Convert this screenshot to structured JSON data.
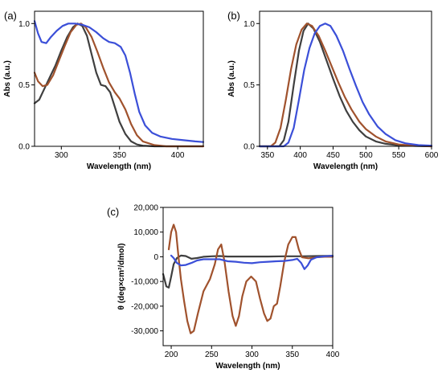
{
  "chart_data": [
    {
      "type": "line",
      "panel_label": "(a)",
      "xlabel": "Wavelength (nm)",
      "ylabel": "Abs (a.u.)",
      "xlim": [
        277,
        422
      ],
      "ylim": [
        0,
        1.1
      ],
      "xticks": [
        300,
        350,
        400
      ],
      "yticks": [
        0.0,
        0.5,
        1.0
      ],
      "ytick_labels": [
        "0.0",
        "0.5",
        "1.0"
      ],
      "grid": false,
      "series": [
        {
          "color": "#3f3f3f",
          "points": [
            [
              277,
              0.35
            ],
            [
              281,
              0.38
            ],
            [
              285,
              0.46
            ],
            [
              290,
              0.56
            ],
            [
              295,
              0.66
            ],
            [
              300,
              0.78
            ],
            [
              305,
              0.89
            ],
            [
              310,
              0.97
            ],
            [
              314,
              1.0
            ],
            [
              318,
              0.98
            ],
            [
              322,
              0.9
            ],
            [
              326,
              0.75
            ],
            [
              330,
              0.6
            ],
            [
              334,
              0.5
            ],
            [
              338,
              0.49
            ],
            [
              342,
              0.44
            ],
            [
              346,
              0.32
            ],
            [
              350,
              0.2
            ],
            [
              355,
              0.1
            ],
            [
              360,
              0.04
            ],
            [
              365,
              0.015
            ],
            [
              370,
              0.005
            ],
            [
              380,
              0.0
            ],
            [
              422,
              0.0
            ]
          ]
        },
        {
          "color": "#a0522d",
          "points": [
            [
              277,
              0.6
            ],
            [
              280,
              0.53
            ],
            [
              284,
              0.49
            ],
            [
              288,
              0.5
            ],
            [
              293,
              0.58
            ],
            [
              298,
              0.7
            ],
            [
              303,
              0.82
            ],
            [
              308,
              0.93
            ],
            [
              313,
              0.99
            ],
            [
              317,
              1.0
            ],
            [
              321,
              0.97
            ],
            [
              326,
              0.89
            ],
            [
              331,
              0.77
            ],
            [
              336,
              0.64
            ],
            [
              341,
              0.52
            ],
            [
              346,
              0.44
            ],
            [
              350,
              0.39
            ],
            [
              355,
              0.3
            ],
            [
              360,
              0.18
            ],
            [
              365,
              0.09
            ],
            [
              370,
              0.04
            ],
            [
              380,
              0.01
            ],
            [
              390,
              0.0
            ],
            [
              422,
              0.0
            ]
          ]
        },
        {
          "color": "#3b4fd8",
          "points": [
            [
              277,
              1.02
            ],
            [
              280,
              0.92
            ],
            [
              283,
              0.85
            ],
            [
              287,
              0.84
            ],
            [
              291,
              0.89
            ],
            [
              296,
              0.94
            ],
            [
              301,
              0.98
            ],
            [
              306,
              1.0
            ],
            [
              312,
              1.0
            ],
            [
              318,
              0.99
            ],
            [
              324,
              0.97
            ],
            [
              330,
              0.93
            ],
            [
              336,
              0.88
            ],
            [
              341,
              0.85
            ],
            [
              346,
              0.84
            ],
            [
              351,
              0.81
            ],
            [
              355,
              0.74
            ],
            [
              359,
              0.6
            ],
            [
              363,
              0.43
            ],
            [
              367,
              0.28
            ],
            [
              372,
              0.17
            ],
            [
              378,
              0.11
            ],
            [
              385,
              0.08
            ],
            [
              395,
              0.06
            ],
            [
              405,
              0.05
            ],
            [
              415,
              0.04
            ],
            [
              422,
              0.035
            ]
          ]
        }
      ]
    },
    {
      "type": "line",
      "panel_label": "(b)",
      "xlabel": "Wavelength (nm)",
      "ylabel": "Abs (a.u.)",
      "xlim": [
        338,
        600
      ],
      "ylim": [
        0,
        1.1
      ],
      "xticks": [
        350,
        400,
        450,
        500,
        550,
        600
      ],
      "yticks": [
        0.0,
        0.5,
        1.0
      ],
      "ytick_labels": [
        "0.0",
        "0.5",
        "1.0"
      ],
      "grid": false,
      "series": [
        {
          "color": "#3f3f3f",
          "points": [
            [
              338,
              0.0
            ],
            [
              368,
              0.0
            ],
            [
              375,
              0.05
            ],
            [
              382,
              0.2
            ],
            [
              390,
              0.5
            ],
            [
              398,
              0.78
            ],
            [
              405,
              0.94
            ],
            [
              412,
              1.0
            ],
            [
              420,
              0.96
            ],
            [
              430,
              0.85
            ],
            [
              440,
              0.7
            ],
            [
              450,
              0.55
            ],
            [
              460,
              0.41
            ],
            [
              470,
              0.29
            ],
            [
              480,
              0.2
            ],
            [
              490,
              0.13
            ],
            [
              500,
              0.08
            ],
            [
              515,
              0.04
            ],
            [
              530,
              0.02
            ],
            [
              550,
              0.008
            ],
            [
              575,
              0.003
            ],
            [
              600,
              0.0
            ]
          ]
        },
        {
          "color": "#a0522d",
          "points": [
            [
              338,
              0.0
            ],
            [
              355,
              0.0
            ],
            [
              362,
              0.03
            ],
            [
              370,
              0.15
            ],
            [
              378,
              0.38
            ],
            [
              386,
              0.63
            ],
            [
              394,
              0.83
            ],
            [
              402,
              0.95
            ],
            [
              410,
              1.0
            ],
            [
              418,
              0.98
            ],
            [
              428,
              0.9
            ],
            [
              438,
              0.78
            ],
            [
              448,
              0.65
            ],
            [
              458,
              0.52
            ],
            [
              468,
              0.4
            ],
            [
              478,
              0.3
            ],
            [
              490,
              0.2
            ],
            [
              500,
              0.14
            ],
            [
              515,
              0.08
            ],
            [
              530,
              0.04
            ],
            [
              550,
              0.015
            ],
            [
              575,
              0.005
            ],
            [
              600,
              0.0
            ]
          ]
        },
        {
          "color": "#3b4fd8",
          "points": [
            [
              338,
              0.0
            ],
            [
              375,
              0.0
            ],
            [
              382,
              0.03
            ],
            [
              390,
              0.15
            ],
            [
              398,
              0.38
            ],
            [
              406,
              0.62
            ],
            [
              414,
              0.8
            ],
            [
              422,
              0.92
            ],
            [
              430,
              0.98
            ],
            [
              438,
              1.0
            ],
            [
              446,
              0.98
            ],
            [
              455,
              0.9
            ],
            [
              465,
              0.78
            ],
            [
              475,
              0.63
            ],
            [
              485,
              0.49
            ],
            [
              495,
              0.36
            ],
            [
              505,
              0.26
            ],
            [
              518,
              0.16
            ],
            [
              530,
              0.1
            ],
            [
              545,
              0.05
            ],
            [
              560,
              0.025
            ],
            [
              580,
              0.01
            ],
            [
              600,
              0.005
            ]
          ]
        }
      ]
    },
    {
      "type": "line",
      "panel_label": "(c)",
      "xlabel": "Wavelength (nm)",
      "ylabel": "θ (deg×cm²/dmol)",
      "xlim": [
        190,
        400
      ],
      "ylim": [
        -36000,
        20000
      ],
      "xticks": [
        200,
        250,
        300,
        350,
        400
      ],
      "yticks": [
        20000,
        10000,
        0,
        -10000,
        -20000,
        -30000
      ],
      "ytick_labels": [
        "20,000",
        "10,000",
        "0",
        "-10,000",
        "-20,000",
        "-30,000"
      ],
      "grid": false,
      "series": [
        {
          "color": "#3f3f3f",
          "points": [
            [
              190,
              -7000
            ],
            [
              194,
              -12000
            ],
            [
              197,
              -12500
            ],
            [
              200,
              -8000
            ],
            [
              203,
              -3000
            ],
            [
              207,
              -500
            ],
            [
              212,
              500
            ],
            [
              218,
              300
            ],
            [
              225,
              -800
            ],
            [
              232,
              -500
            ],
            [
              240,
              0
            ],
            [
              250,
              200
            ],
            [
              260,
              300
            ],
            [
              270,
              100
            ],
            [
              280,
              100
            ],
            [
              300,
              100
            ],
            [
              320,
              100
            ],
            [
              340,
              200
            ],
            [
              360,
              200
            ],
            [
              380,
              300
            ],
            [
              400,
              400
            ]
          ]
        },
        {
          "color": "#a0522d",
          "points": [
            [
              197,
              3000
            ],
            [
              200,
              10000
            ],
            [
              203,
              13000
            ],
            [
              206,
              10000
            ],
            [
              209,
              0
            ],
            [
              212,
              -9000
            ],
            [
              216,
              -18000
            ],
            [
              220,
              -26000
            ],
            [
              224,
              -31000
            ],
            [
              228,
              -30000
            ],
            [
              233,
              -23000
            ],
            [
              240,
              -14000
            ],
            [
              248,
              -9000
            ],
            [
              254,
              -3000
            ],
            [
              258,
              3000
            ],
            [
              262,
              5000
            ],
            [
              266,
              -2000
            ],
            [
              271,
              -14000
            ],
            [
              276,
              -24000
            ],
            [
              280,
              -28000
            ],
            [
              284,
              -24000
            ],
            [
              288,
              -16000
            ],
            [
              293,
              -10000
            ],
            [
              299,
              -8000
            ],
            [
              305,
              -10000
            ],
            [
              310,
              -17000
            ],
            [
              315,
              -23000
            ],
            [
              319,
              -26000
            ],
            [
              323,
              -25000
            ],
            [
              327,
              -20000
            ],
            [
              331,
              -19000
            ],
            [
              335,
              -12000
            ],
            [
              340,
              -2000
            ],
            [
              345,
              5000
            ],
            [
              350,
              8000
            ],
            [
              354,
              8000
            ],
            [
              358,
              3000
            ],
            [
              362,
              -200
            ],
            [
              370,
              -600
            ],
            [
              380,
              -200
            ],
            [
              390,
              0
            ],
            [
              400,
              0
            ]
          ]
        },
        {
          "color": "#3b4fd8",
          "points": [
            [
              200,
              500
            ],
            [
              203,
              -500
            ],
            [
              207,
              -2500
            ],
            [
              212,
              -3500
            ],
            [
              218,
              -3300
            ],
            [
              225,
              -2500
            ],
            [
              232,
              -1500
            ],
            [
              240,
              -1000
            ],
            [
              250,
              -1000
            ],
            [
              260,
              -1000
            ],
            [
              270,
              -1800
            ],
            [
              280,
              -2000
            ],
            [
              290,
              -2400
            ],
            [
              300,
              -2600
            ],
            [
              310,
              -2200
            ],
            [
              320,
              -2000
            ],
            [
              330,
              -1800
            ],
            [
              340,
              -1700
            ],
            [
              350,
              -1300
            ],
            [
              356,
              -800
            ],
            [
              361,
              -2500
            ],
            [
              365,
              -5000
            ],
            [
              369,
              -3500
            ],
            [
              373,
              -1200
            ],
            [
              380,
              -200
            ],
            [
              390,
              200
            ],
            [
              400,
              400
            ]
          ]
        }
      ]
    }
  ]
}
